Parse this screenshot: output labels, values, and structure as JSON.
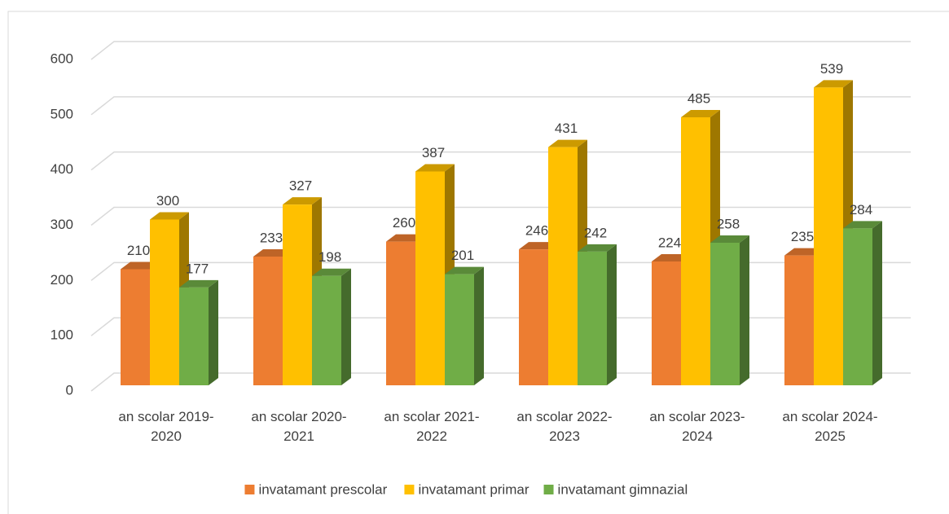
{
  "chart_data": {
    "type": "bar3d",
    "categories": [
      "an scolar 2019-2020",
      "an scolar 2020-2021",
      "an scolar 2021-2022",
      "an scolar 2022-2023",
      "an scolar 2023-2024",
      "an scolar 2024-2025"
    ],
    "series": [
      {
        "name": "invatamant prescolar",
        "color": "#ed7d31",
        "values": [
          210,
          233,
          260,
          246,
          224,
          235
        ]
      },
      {
        "name": "invatamant primar",
        "color": "#ffc000",
        "values": [
          300,
          327,
          387,
          431,
          485,
          539
        ]
      },
      {
        "name": "invatamant gimnazial",
        "color": "#70ad47",
        "values": [
          177,
          198,
          201,
          242,
          258,
          284
        ]
      }
    ],
    "ylim": [
      0,
      600
    ],
    "yticks": [
      0,
      100,
      200,
      300,
      400,
      500,
      600
    ],
    "grid": true,
    "legend": "bottom"
  }
}
